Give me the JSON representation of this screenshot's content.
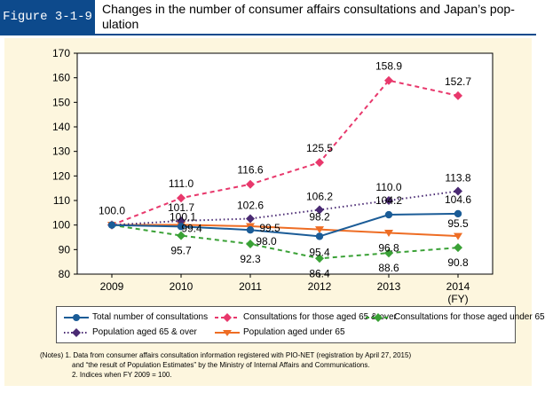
{
  "header": {
    "figure_label": "Figure 3-1-9",
    "title_line1": "Changes in the number of consumer affairs consultations and Japan’s pop-",
    "title_line2": "ulation"
  },
  "chart_data": {
    "type": "line",
    "title": "Changes in the number of consumer affairs consultations and Japan’s population",
    "categories": [
      "2009",
      "2010",
      "2011",
      "2012",
      "2013",
      "2014"
    ],
    "x_unit": "(FY)",
    "ylim": [
      80,
      170
    ],
    "yticks": [
      80,
      90,
      100,
      110,
      120,
      130,
      140,
      150,
      160,
      170
    ],
    "grid": false,
    "series": [
      {
        "name": "Total number of consultations",
        "color": "#1b5c97",
        "dash": "solid",
        "marker": "circle",
        "values": [
          100.0,
          99.4,
          98.0,
          95.4,
          104.2,
          104.6
        ],
        "labels": [
          "100.0",
          "99.4",
          "98.0",
          "95.4",
          "104.2",
          "104.6"
        ]
      },
      {
        "name": "Consultations for those aged 65 & over",
        "color": "#e8386c",
        "dash": "dashed",
        "marker": "diamond",
        "values": [
          100.0,
          111.0,
          116.6,
          125.5,
          158.9,
          152.7
        ],
        "labels": [
          "",
          "111.0",
          "116.6",
          "125.5",
          "158.9",
          "152.7"
        ]
      },
      {
        "name": "Consultations for those aged under 65",
        "color": "#3aa136",
        "dash": "dashed",
        "marker": "diamond",
        "values": [
          100.0,
          95.7,
          92.3,
          86.4,
          88.6,
          90.8
        ],
        "labels": [
          "",
          "95.7",
          "92.3",
          "86.4",
          "88.6",
          "90.8"
        ]
      },
      {
        "name": "Population aged 65 & over",
        "color": "#4a2a73",
        "dash": "dotted",
        "marker": "diamond",
        "values": [
          100.0,
          101.7,
          102.6,
          106.2,
          110.0,
          113.8
        ],
        "labels": [
          "",
          "101.7",
          "102.6",
          "106.2",
          "110.0",
          "113.8"
        ]
      },
      {
        "name": "Population aged under 65",
        "color": "#ee6d24",
        "dash": "solid",
        "marker": "triangle",
        "values": [
          100.0,
          100.1,
          99.5,
          98.2,
          96.8,
          95.5
        ],
        "labels": [
          "",
          "100.1",
          "99.5",
          "98.2",
          "96.8",
          "95.5"
        ]
      }
    ]
  },
  "notes": {
    "line1": "(Notes)  1. Data from consumer affairs consultation information registered with PIO-NET  (registration by April 27, 2015)",
    "line2": "and “the result of Population Estimates” by the Ministry of Internal Affairs and Communications.",
    "line3": "2. Indices when FY 2009 = 100."
  }
}
